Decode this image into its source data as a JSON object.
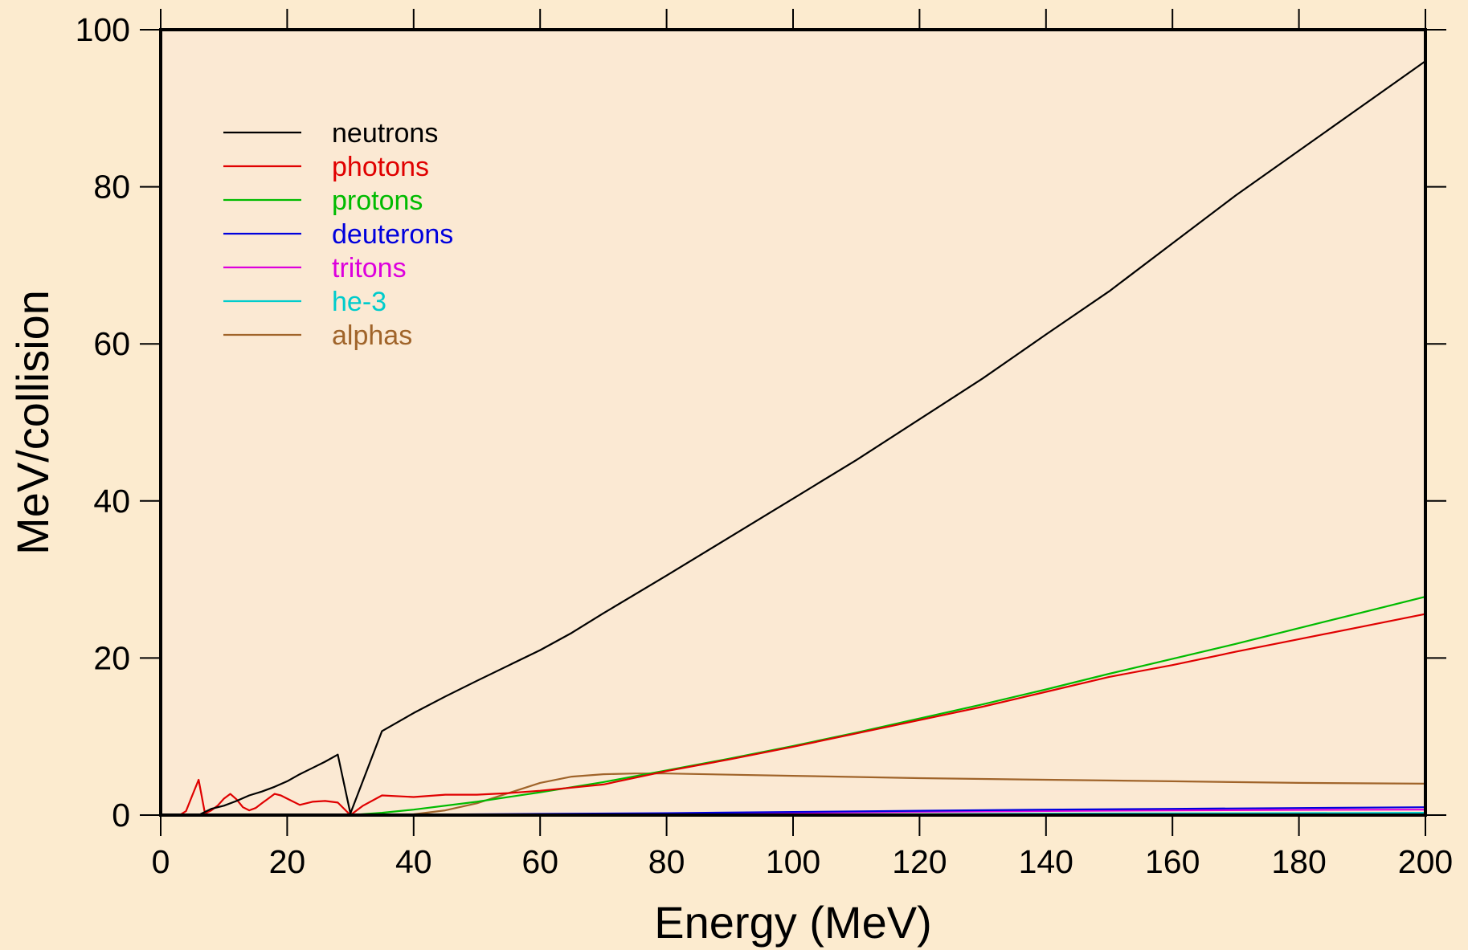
{
  "chart_data": {
    "type": "line",
    "xlabel": "Energy (MeV)",
    "ylabel": "MeV/collision",
    "xlim": [
      0,
      200
    ],
    "ylim": [
      0,
      100
    ],
    "x_ticks": [
      0,
      20,
      40,
      60,
      80,
      100,
      120,
      140,
      160,
      180,
      200
    ],
    "y_ticks": [
      0,
      20,
      40,
      60,
      80,
      100
    ],
    "grid": false,
    "legend_position": "top-left",
    "colors": {
      "background": "#fcebcf",
      "plot_area": "#fbe9d3",
      "axis": "#000000"
    },
    "series": [
      {
        "name": "neutrons",
        "color": "#000000",
        "x": [
          0,
          2,
          4,
          6,
          8,
          10,
          12,
          14,
          16,
          18,
          20,
          22,
          24,
          26,
          28,
          30,
          35,
          40,
          45,
          50,
          60,
          65,
          70,
          80,
          90,
          100,
          110,
          120,
          130,
          140,
          150,
          160,
          170,
          180,
          190,
          200
        ],
        "y": [
          0,
          0,
          0,
          0,
          0.8,
          1.2,
          1.8,
          2.5,
          3.0,
          3.6,
          4.3,
          5.2,
          6.0,
          6.8,
          7.7,
          0.2,
          10.7,
          13.0,
          15.1,
          17.1,
          21.0,
          23.2,
          25.7,
          30.5,
          35.4,
          40.3,
          45.2,
          50.4,
          55.6,
          61.2,
          66.7,
          72.8,
          78.9,
          84.6,
          90.3,
          96.0
        ]
      },
      {
        "name": "photons",
        "color": "#e00000",
        "x": [
          0,
          2,
          3,
          4,
          5,
          6,
          7,
          8,
          9,
          10,
          11,
          12,
          13,
          14,
          15,
          16,
          17,
          18,
          19,
          20,
          22,
          24,
          26,
          28,
          30,
          32,
          35,
          40,
          45,
          50,
          55,
          60,
          70,
          80,
          90,
          100,
          110,
          120,
          130,
          140,
          150,
          160,
          170,
          180,
          190,
          200
        ],
        "y": [
          0,
          0,
          0,
          0.5,
          2.5,
          4.5,
          0.2,
          0.6,
          1.2,
          2.1,
          2.7,
          2.0,
          1.0,
          0.6,
          0.9,
          1.5,
          2.1,
          2.7,
          2.5,
          2.1,
          1.3,
          1.7,
          1.8,
          1.6,
          0,
          1.2,
          2.5,
          2.3,
          2.6,
          2.6,
          2.8,
          3.1,
          3.9,
          5.6,
          7.1,
          8.7,
          10.4,
          12.1,
          13.8,
          15.7,
          17.6,
          19.1,
          20.8,
          22.4,
          24.0,
          25.6
        ]
      },
      {
        "name": "protons",
        "color": "#00bb00",
        "x": [
          0,
          10,
          20,
          30,
          35,
          40,
          50,
          60,
          70,
          80,
          90,
          100,
          110,
          120,
          130,
          140,
          150,
          160,
          170,
          180,
          190,
          200
        ],
        "y": [
          0,
          0,
          0,
          0,
          0.3,
          0.7,
          1.7,
          2.9,
          4.2,
          5.7,
          7.2,
          8.8,
          10.5,
          12.3,
          14.1,
          16.0,
          18.0,
          19.9,
          21.8,
          23.8,
          25.8,
          27.8
        ]
      },
      {
        "name": "deuterons",
        "color": "#0000dd",
        "x": [
          0,
          20,
          40,
          60,
          80,
          100,
          120,
          140,
          160,
          180,
          200
        ],
        "y": [
          0,
          0,
          0.05,
          0.15,
          0.25,
          0.4,
          0.55,
          0.7,
          0.8,
          0.9,
          1.0
        ]
      },
      {
        "name": "tritons",
        "color": "#dd00dd",
        "x": [
          0,
          20,
          40,
          60,
          80,
          100,
          120,
          140,
          160,
          180,
          200
        ],
        "y": [
          0,
          0,
          0.03,
          0.1,
          0.18,
          0.3,
          0.42,
          0.52,
          0.6,
          0.66,
          0.7
        ]
      },
      {
        "name": "he-3",
        "color": "#00cccc",
        "x": [
          0,
          20,
          40,
          60,
          80,
          100,
          120,
          140,
          160,
          180,
          200
        ],
        "y": [
          0,
          0,
          0,
          0.02,
          0.05,
          0.08,
          0.12,
          0.18,
          0.22,
          0.26,
          0.3
        ]
      },
      {
        "name": "alphas",
        "color": "#a0642a",
        "x": [
          0,
          10,
          20,
          30,
          40,
          45,
          50,
          55,
          60,
          65,
          70,
          75,
          80,
          100,
          120,
          140,
          160,
          180,
          200
        ],
        "y": [
          0,
          0,
          0,
          0,
          0.1,
          0.6,
          1.5,
          2.8,
          4.1,
          4.9,
          5.2,
          5.3,
          5.3,
          5.0,
          4.7,
          4.5,
          4.3,
          4.1,
          4.0
        ]
      }
    ]
  }
}
